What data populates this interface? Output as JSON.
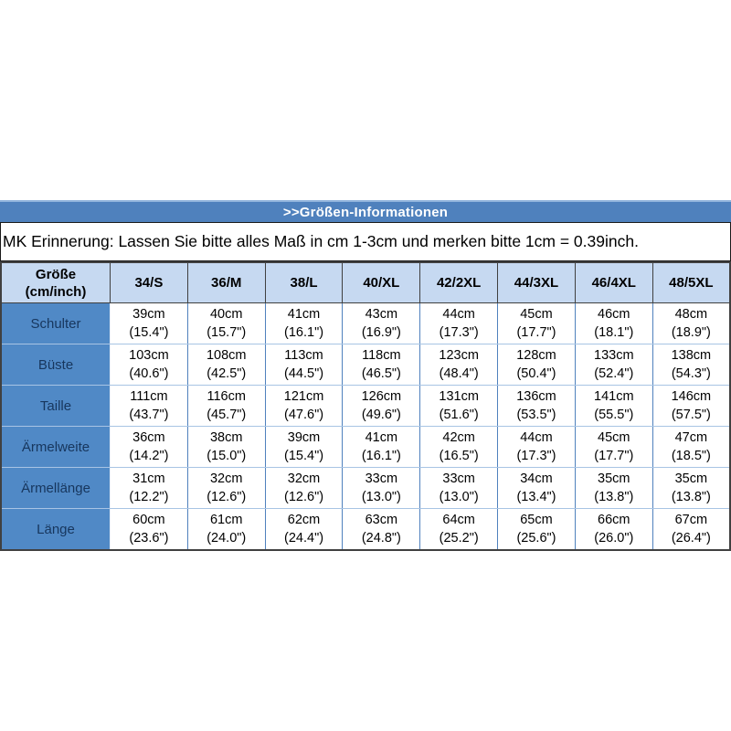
{
  "title_bar": {
    "label": ">>Größen-Informationen"
  },
  "notice": {
    "text": "MK Erinnerung: Lassen Sie bitte alles Maß in cm 1-3cm und merken bitte 1cm = 0.39inch."
  },
  "table": {
    "corner": {
      "line1": "Größe",
      "line2": "(cm/inch)"
    },
    "columns": [
      "34/S",
      "36/M",
      "38/L",
      "40/XL",
      "42/2XL",
      "44/3XL",
      "46/4XL",
      "48/5XL"
    ],
    "rows": [
      {
        "label": "Schulter",
        "cells": [
          [
            "39cm",
            "(15.4\")"
          ],
          [
            "40cm",
            "(15.7\")"
          ],
          [
            "41cm",
            "(16.1\")"
          ],
          [
            "43cm",
            "(16.9\")"
          ],
          [
            "44cm",
            "(17.3\")"
          ],
          [
            "45cm",
            "(17.7\")"
          ],
          [
            "46cm",
            "(18.1\")"
          ],
          [
            "48cm",
            "(18.9\")"
          ]
        ]
      },
      {
        "label": "Büste",
        "cells": [
          [
            "103cm",
            "(40.6\")"
          ],
          [
            "108cm",
            "(42.5\")"
          ],
          [
            "113cm",
            "(44.5\")"
          ],
          [
            "118cm",
            "(46.5\")"
          ],
          [
            "123cm",
            "(48.4\")"
          ],
          [
            "128cm",
            "(50.4\")"
          ],
          [
            "133cm",
            "(52.4\")"
          ],
          [
            "138cm",
            "(54.3\")"
          ]
        ]
      },
      {
        "label": "Taille",
        "cells": [
          [
            "111cm",
            "(43.7\")"
          ],
          [
            "116cm",
            "(45.7\")"
          ],
          [
            "121cm",
            "(47.6\")"
          ],
          [
            "126cm",
            "(49.6\")"
          ],
          [
            "131cm",
            "(51.6\")"
          ],
          [
            "136cm",
            "(53.5\")"
          ],
          [
            "141cm",
            "(55.5\")"
          ],
          [
            "146cm",
            "(57.5\")"
          ]
        ]
      },
      {
        "label": "Ärmelweite",
        "cells": [
          [
            "36cm",
            "(14.2\")"
          ],
          [
            "38cm",
            "(15.0\")"
          ],
          [
            "39cm",
            "(15.4\")"
          ],
          [
            "41cm",
            "(16.1\")"
          ],
          [
            "42cm",
            "(16.5\")"
          ],
          [
            "44cm",
            "(17.3\")"
          ],
          [
            "45cm",
            "(17.7\")"
          ],
          [
            "47cm",
            "(18.5\")"
          ]
        ]
      },
      {
        "label": "Ärmellänge",
        "cells": [
          [
            "31cm",
            "(12.2\")"
          ],
          [
            "32cm",
            "(12.6\")"
          ],
          [
            "32cm",
            "(12.6\")"
          ],
          [
            "33cm",
            "(13.0\")"
          ],
          [
            "33cm",
            "(13.0\")"
          ],
          [
            "34cm",
            "(13.4\")"
          ],
          [
            "35cm",
            "(13.8\")"
          ],
          [
            "35cm",
            "(13.8\")"
          ]
        ]
      },
      {
        "label": "Länge",
        "cells": [
          [
            "60cm",
            "(23.6\")"
          ],
          [
            "61cm",
            "(24.0\")"
          ],
          [
            "62cm",
            "(24.4\")"
          ],
          [
            "63cm",
            "(24.8\")"
          ],
          [
            "64cm",
            "(25.2\")"
          ],
          [
            "65cm",
            "(25.6\")"
          ],
          [
            "66cm",
            "(26.0\")"
          ],
          [
            "67cm",
            "(26.4\")"
          ]
        ]
      }
    ]
  },
  "colors": {
    "title_bar_bg": "#4f81bd",
    "title_bar_edge": "#93b5dd",
    "header_row_bg": "#c6d9f1",
    "label_col_bg": "#5089c6",
    "label_text": "#17365d",
    "border_light": "#a8c4e4",
    "border_mid": "#4f81bd",
    "border_dark": "#404040"
  }
}
